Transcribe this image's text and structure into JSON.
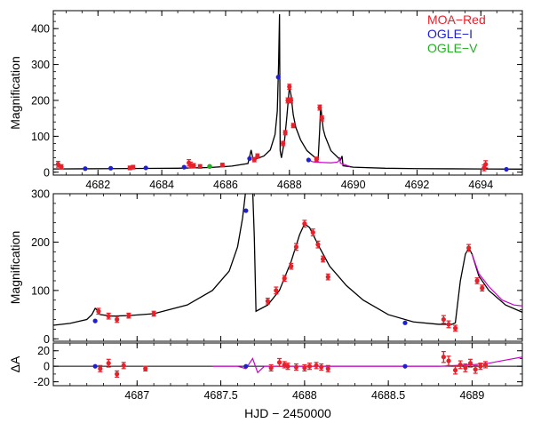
{
  "colors": {
    "model": "#000000",
    "alt_model": "#cc00cc",
    "moa": "#e8202a",
    "ogle_i": "#1e1ed2",
    "ogle_v": "#22b022"
  },
  "legend": [
    {
      "label": "MOA−Red",
      "color": "#e8202a"
    },
    {
      "label": "OGLE−I",
      "color": "#1e1ed2"
    },
    {
      "label": "OGLE−V",
      "color": "#22b022"
    }
  ],
  "chart_data": [
    {
      "type": "scatter",
      "panel": "top",
      "ylabel": "Magnification",
      "xlim": [
        4680.6,
        4695.3
      ],
      "ylim": [
        -8,
        450
      ],
      "xticks": [
        4682,
        4684,
        4686,
        4688,
        4690,
        4692,
        4694
      ],
      "yticks": [
        0,
        100,
        200,
        300,
        400
      ],
      "model": [
        [
          4680.6,
          9
        ],
        [
          4681.5,
          9.5
        ],
        [
          4682.5,
          10
        ],
        [
          4683.5,
          10.5
        ],
        [
          4684.5,
          11
        ],
        [
          4685.5,
          13
        ],
        [
          4686.2,
          17
        ],
        [
          4686.7,
          24
        ],
        [
          4686.75,
          42
        ],
        [
          4686.8,
          62
        ],
        [
          4686.85,
          40
        ],
        [
          4686.95,
          37
        ],
        [
          4687.2,
          45
        ],
        [
          4687.4,
          62
        ],
        [
          4687.55,
          105
        ],
        [
          4687.62,
          170
        ],
        [
          4687.66,
          300
        ],
        [
          4687.69,
          440
        ],
        [
          4687.71,
          60
        ],
        [
          4687.75,
          40
        ],
        [
          4687.85,
          90
        ],
        [
          4687.92,
          155
        ],
        [
          4688.0,
          238
        ],
        [
          4688.05,
          215
        ],
        [
          4688.12,
          160
        ],
        [
          4688.2,
          125
        ],
        [
          4688.35,
          90
        ],
        [
          4688.55,
          60
        ],
        [
          4688.75,
          45
        ],
        [
          4688.86,
          36
        ],
        [
          4688.9,
          35
        ],
        [
          4688.95,
          120
        ],
        [
          4688.98,
          188
        ],
        [
          4689.02,
          150
        ],
        [
          4689.06,
          120
        ],
        [
          4689.12,
          100
        ],
        [
          4689.3,
          60
        ],
        [
          4689.6,
          34
        ],
        [
          4689.65,
          45
        ],
        [
          4689.68,
          18
        ],
        [
          4690.0,
          14
        ],
        [
          4691.0,
          11
        ],
        [
          4692.0,
          10
        ],
        [
          4693.0,
          9.5
        ],
        [
          4694.0,
          9
        ],
        [
          4695.3,
          8.5
        ]
      ],
      "alt_model": [
        [
          4688.6,
          36
        ],
        [
          4688.7,
          30
        ],
        [
          4688.8,
          28
        ],
        [
          4689.3,
          26
        ],
        [
          4689.5,
          28
        ],
        [
          4689.55,
          32
        ],
        [
          4689.57,
          42
        ],
        [
          4689.6,
          25
        ],
        [
          4689.9,
          16
        ]
      ],
      "moa": [
        [
          4680.75,
          22,
          8
        ],
        [
          4680.85,
          15,
          6
        ],
        [
          4683.0,
          12,
          5
        ],
        [
          4683.1,
          14,
          5
        ],
        [
          4684.85,
          26,
          9
        ],
        [
          4684.9,
          20,
          8
        ],
        [
          4685.0,
          18,
          6
        ],
        [
          4685.2,
          16,
          5
        ],
        [
          4685.9,
          20,
          5
        ],
        [
          4686.9,
          35,
          6
        ],
        [
          4687.0,
          45,
          6
        ],
        [
          4687.8,
          80,
          6
        ],
        [
          4687.87,
          110,
          6
        ],
        [
          4687.95,
          200,
          7
        ],
        [
          4688.0,
          238,
          7
        ],
        [
          4688.05,
          200,
          7
        ],
        [
          4688.12,
          130,
          6
        ],
        [
          4688.85,
          36,
          6
        ],
        [
          4688.95,
          180,
          7
        ],
        [
          4689.02,
          150,
          7
        ],
        [
          4694.1,
          12,
          8
        ],
        [
          4694.15,
          22,
          10
        ]
      ],
      "ogle_i": [
        [
          4681.6,
          10
        ],
        [
          4682.4,
          11
        ],
        [
          4683.5,
          12
        ],
        [
          4684.7,
          14
        ],
        [
          4686.75,
          38
        ],
        [
          4687.65,
          265
        ],
        [
          4688.6,
          34
        ],
        [
          4694.8,
          8
        ]
      ],
      "ogle_v": [
        [
          4685.5,
          16
        ]
      ]
    },
    {
      "type": "scatter",
      "panel": "middle",
      "ylabel": "Magnification",
      "xlim": [
        4686.5,
        4689.3
      ],
      "ylim": [
        -5,
        300
      ],
      "xticks": [
        4687,
        4687.5,
        4688,
        4688.5,
        4689
      ],
      "yticks": [
        0,
        100,
        200,
        300
      ],
      "model": [
        [
          4686.5,
          28
        ],
        [
          4686.6,
          32
        ],
        [
          4686.7,
          40
        ],
        [
          4686.73,
          50
        ],
        [
          4686.75,
          63
        ],
        [
          4686.76,
          60
        ],
        [
          4686.78,
          50
        ],
        [
          4686.85,
          47
        ],
        [
          4686.95,
          48
        ],
        [
          4687.1,
          52
        ],
        [
          4687.3,
          70
        ],
        [
          4687.45,
          100
        ],
        [
          4687.55,
          140
        ],
        [
          4687.6,
          190
        ],
        [
          4687.63,
          250
        ],
        [
          4687.65,
          310
        ],
        [
          4687.69,
          310
        ],
        [
          4687.7,
          210
        ],
        [
          4687.71,
          57
        ],
        [
          4687.78,
          70
        ],
        [
          4687.85,
          100
        ],
        [
          4687.92,
          160
        ],
        [
          4687.97,
          215
        ],
        [
          4688.0,
          238
        ],
        [
          4688.03,
          230
        ],
        [
          4688.08,
          195
        ],
        [
          4688.15,
          150
        ],
        [
          4688.25,
          110
        ],
        [
          4688.35,
          80
        ],
        [
          4688.5,
          50
        ],
        [
          4688.65,
          35
        ],
        [
          4688.8,
          30
        ],
        [
          4688.88,
          30
        ],
        [
          4688.9,
          33
        ],
        [
          4688.93,
          120
        ],
        [
          4688.96,
          175
        ],
        [
          4688.98,
          188
        ],
        [
          4689.0,
          175
        ],
        [
          4689.04,
          130
        ],
        [
          4689.1,
          100
        ],
        [
          4689.2,
          70
        ],
        [
          4689.3,
          55
        ]
      ],
      "alt_model": [
        [
          4689.0,
          175
        ],
        [
          4689.04,
          135
        ],
        [
          4689.1,
          108
        ],
        [
          4689.18,
          80
        ],
        [
          4689.25,
          70
        ],
        [
          4689.3,
          68
        ]
      ],
      "moa": [
        [
          4686.77,
          57,
          6
        ],
        [
          4686.83,
          47,
          6
        ],
        [
          4686.88,
          40,
          6
        ],
        [
          4686.95,
          48,
          5
        ],
        [
          4687.1,
          52,
          5
        ],
        [
          4687.78,
          78,
          6
        ],
        [
          4687.83,
          100,
          7
        ],
        [
          4687.88,
          125,
          6
        ],
        [
          4687.92,
          150,
          6
        ],
        [
          4687.95,
          190,
          7
        ],
        [
          4688.0,
          238,
          7
        ],
        [
          4688.05,
          220,
          7
        ],
        [
          4688.08,
          195,
          7
        ],
        [
          4688.11,
          165,
          6
        ],
        [
          4688.14,
          128,
          6
        ],
        [
          4688.83,
          40,
          8
        ],
        [
          4688.86,
          30,
          7
        ],
        [
          4688.9,
          22,
          6
        ],
        [
          4688.98,
          188,
          7
        ],
        [
          4689.03,
          120,
          6
        ],
        [
          4689.06,
          105,
          6
        ]
      ],
      "ogle_i": [
        [
          4686.75,
          37
        ],
        [
          4687.65,
          265
        ],
        [
          4688.6,
          33
        ]
      ],
      "ogle_v": []
    },
    {
      "type": "scatter",
      "panel": "residuals",
      "ylabel": "ΔA",
      "xlabel": "HJD − 2450000",
      "xlim": [
        4686.5,
        4689.3
      ],
      "ylim": [
        -25,
        30
      ],
      "xticks": [
        4687,
        4687.5,
        4688,
        4688.5,
        4689
      ],
      "yticks": [
        -20,
        0,
        20
      ],
      "alt_model": [
        [
          4687.45,
          0
        ],
        [
          4687.6,
          0
        ],
        [
          4687.65,
          -3
        ],
        [
          4687.69,
          10
        ],
        [
          4687.72,
          -8
        ],
        [
          4687.76,
          0
        ],
        [
          4688.8,
          0
        ],
        [
          4689.0,
          2
        ],
        [
          4689.1,
          4
        ],
        [
          4689.2,
          8
        ],
        [
          4689.3,
          12
        ]
      ],
      "moa": [
        [
          4686.78,
          -3,
          4
        ],
        [
          4686.83,
          4,
          5
        ],
        [
          4686.88,
          -10,
          4
        ],
        [
          4686.92,
          1,
          4
        ],
        [
          4687.05,
          -3,
          3
        ],
        [
          4687.8,
          -2,
          4
        ],
        [
          4687.85,
          5,
          5
        ],
        [
          4687.88,
          2,
          4
        ],
        [
          4687.9,
          0,
          4
        ],
        [
          4687.95,
          -1,
          4
        ],
        [
          4688.0,
          -2,
          4
        ],
        [
          4688.03,
          0,
          4
        ],
        [
          4688.07,
          1,
          4
        ],
        [
          4688.1,
          -1,
          4
        ],
        [
          4688.14,
          -3,
          4
        ],
        [
          4688.83,
          12,
          7
        ],
        [
          4688.86,
          7,
          6
        ],
        [
          4688.9,
          -5,
          5
        ],
        [
          4688.93,
          2,
          5
        ],
        [
          4688.96,
          -2,
          5
        ],
        [
          4688.99,
          4,
          5
        ],
        [
          4689.02,
          -4,
          5
        ],
        [
          4689.05,
          0,
          4
        ],
        [
          4689.08,
          2,
          4
        ]
      ],
      "ogle_i": [
        [
          4686.75,
          0
        ],
        [
          4687.65,
          0
        ],
        [
          4688.6,
          0
        ]
      ],
      "ogle_v": []
    }
  ]
}
